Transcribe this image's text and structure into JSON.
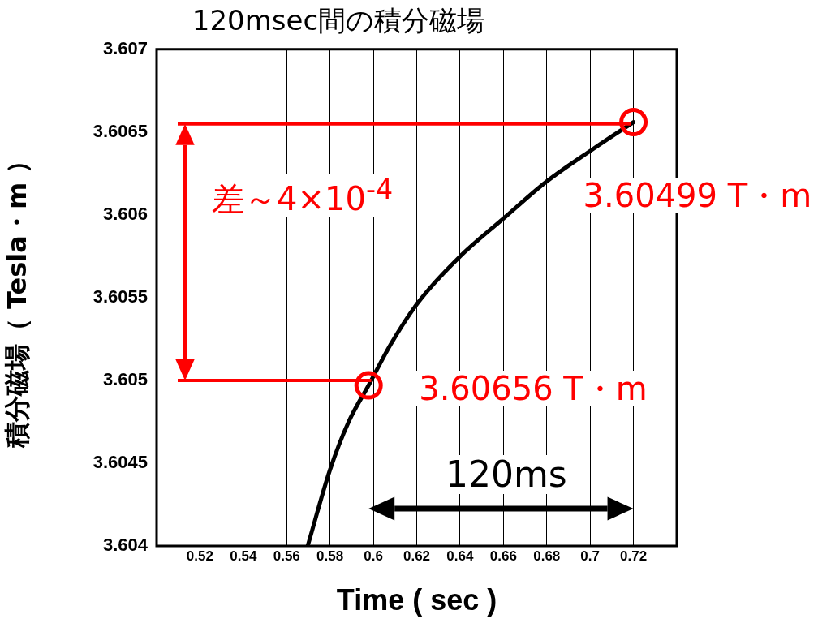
{
  "chart_data": {
    "type": "line",
    "title": "120msec間の積分磁場",
    "xlabel": "Time ( sec )",
    "ylabel": "積分磁場（ Tesla・m ）",
    "x": [
      0.5697,
      0.58,
      0.5886,
      0.5978,
      0.6081,
      0.6206,
      0.6393,
      0.6611,
      0.6798,
      0.7016,
      0.72
    ],
    "series": [
      {
        "color": "#000000",
        "values": [
          3.604,
          3.60446,
          3.60475,
          3.60497,
          3.60522,
          3.60547,
          3.60574,
          3.60599,
          3.6062,
          3.6064,
          3.60656
        ]
      }
    ],
    "xlim": [
      0.5,
      0.74
    ],
    "xticks": [
      0.52,
      0.54,
      0.56,
      0.58,
      0.6,
      0.62,
      0.64,
      0.66,
      0.68,
      0.7,
      0.72
    ],
    "ylim": [
      3.604,
      3.607
    ],
    "yticks": [
      3.604,
      3.6045,
      3.605,
      3.6055,
      3.606,
      3.6065,
      3.607
    ],
    "grid": "x",
    "marker": "none",
    "line_style": "solid",
    "legend": false,
    "ref_lines": [
      {
        "axis": "y",
        "value": 3.60655,
        "color": "#ff0000"
      },
      {
        "axis": "y",
        "value": 3.605,
        "color": "#ff0000"
      }
    ],
    "annotations": [
      {
        "text": "3.60499 T・m",
        "x": 0.72,
        "y": 3.60656
      },
      {
        "text": "3.60656 T・m",
        "x": 0.5978,
        "y": 3.60497
      },
      "差～4×10$^{-4}$",
      "120ms"
    ]
  }
}
